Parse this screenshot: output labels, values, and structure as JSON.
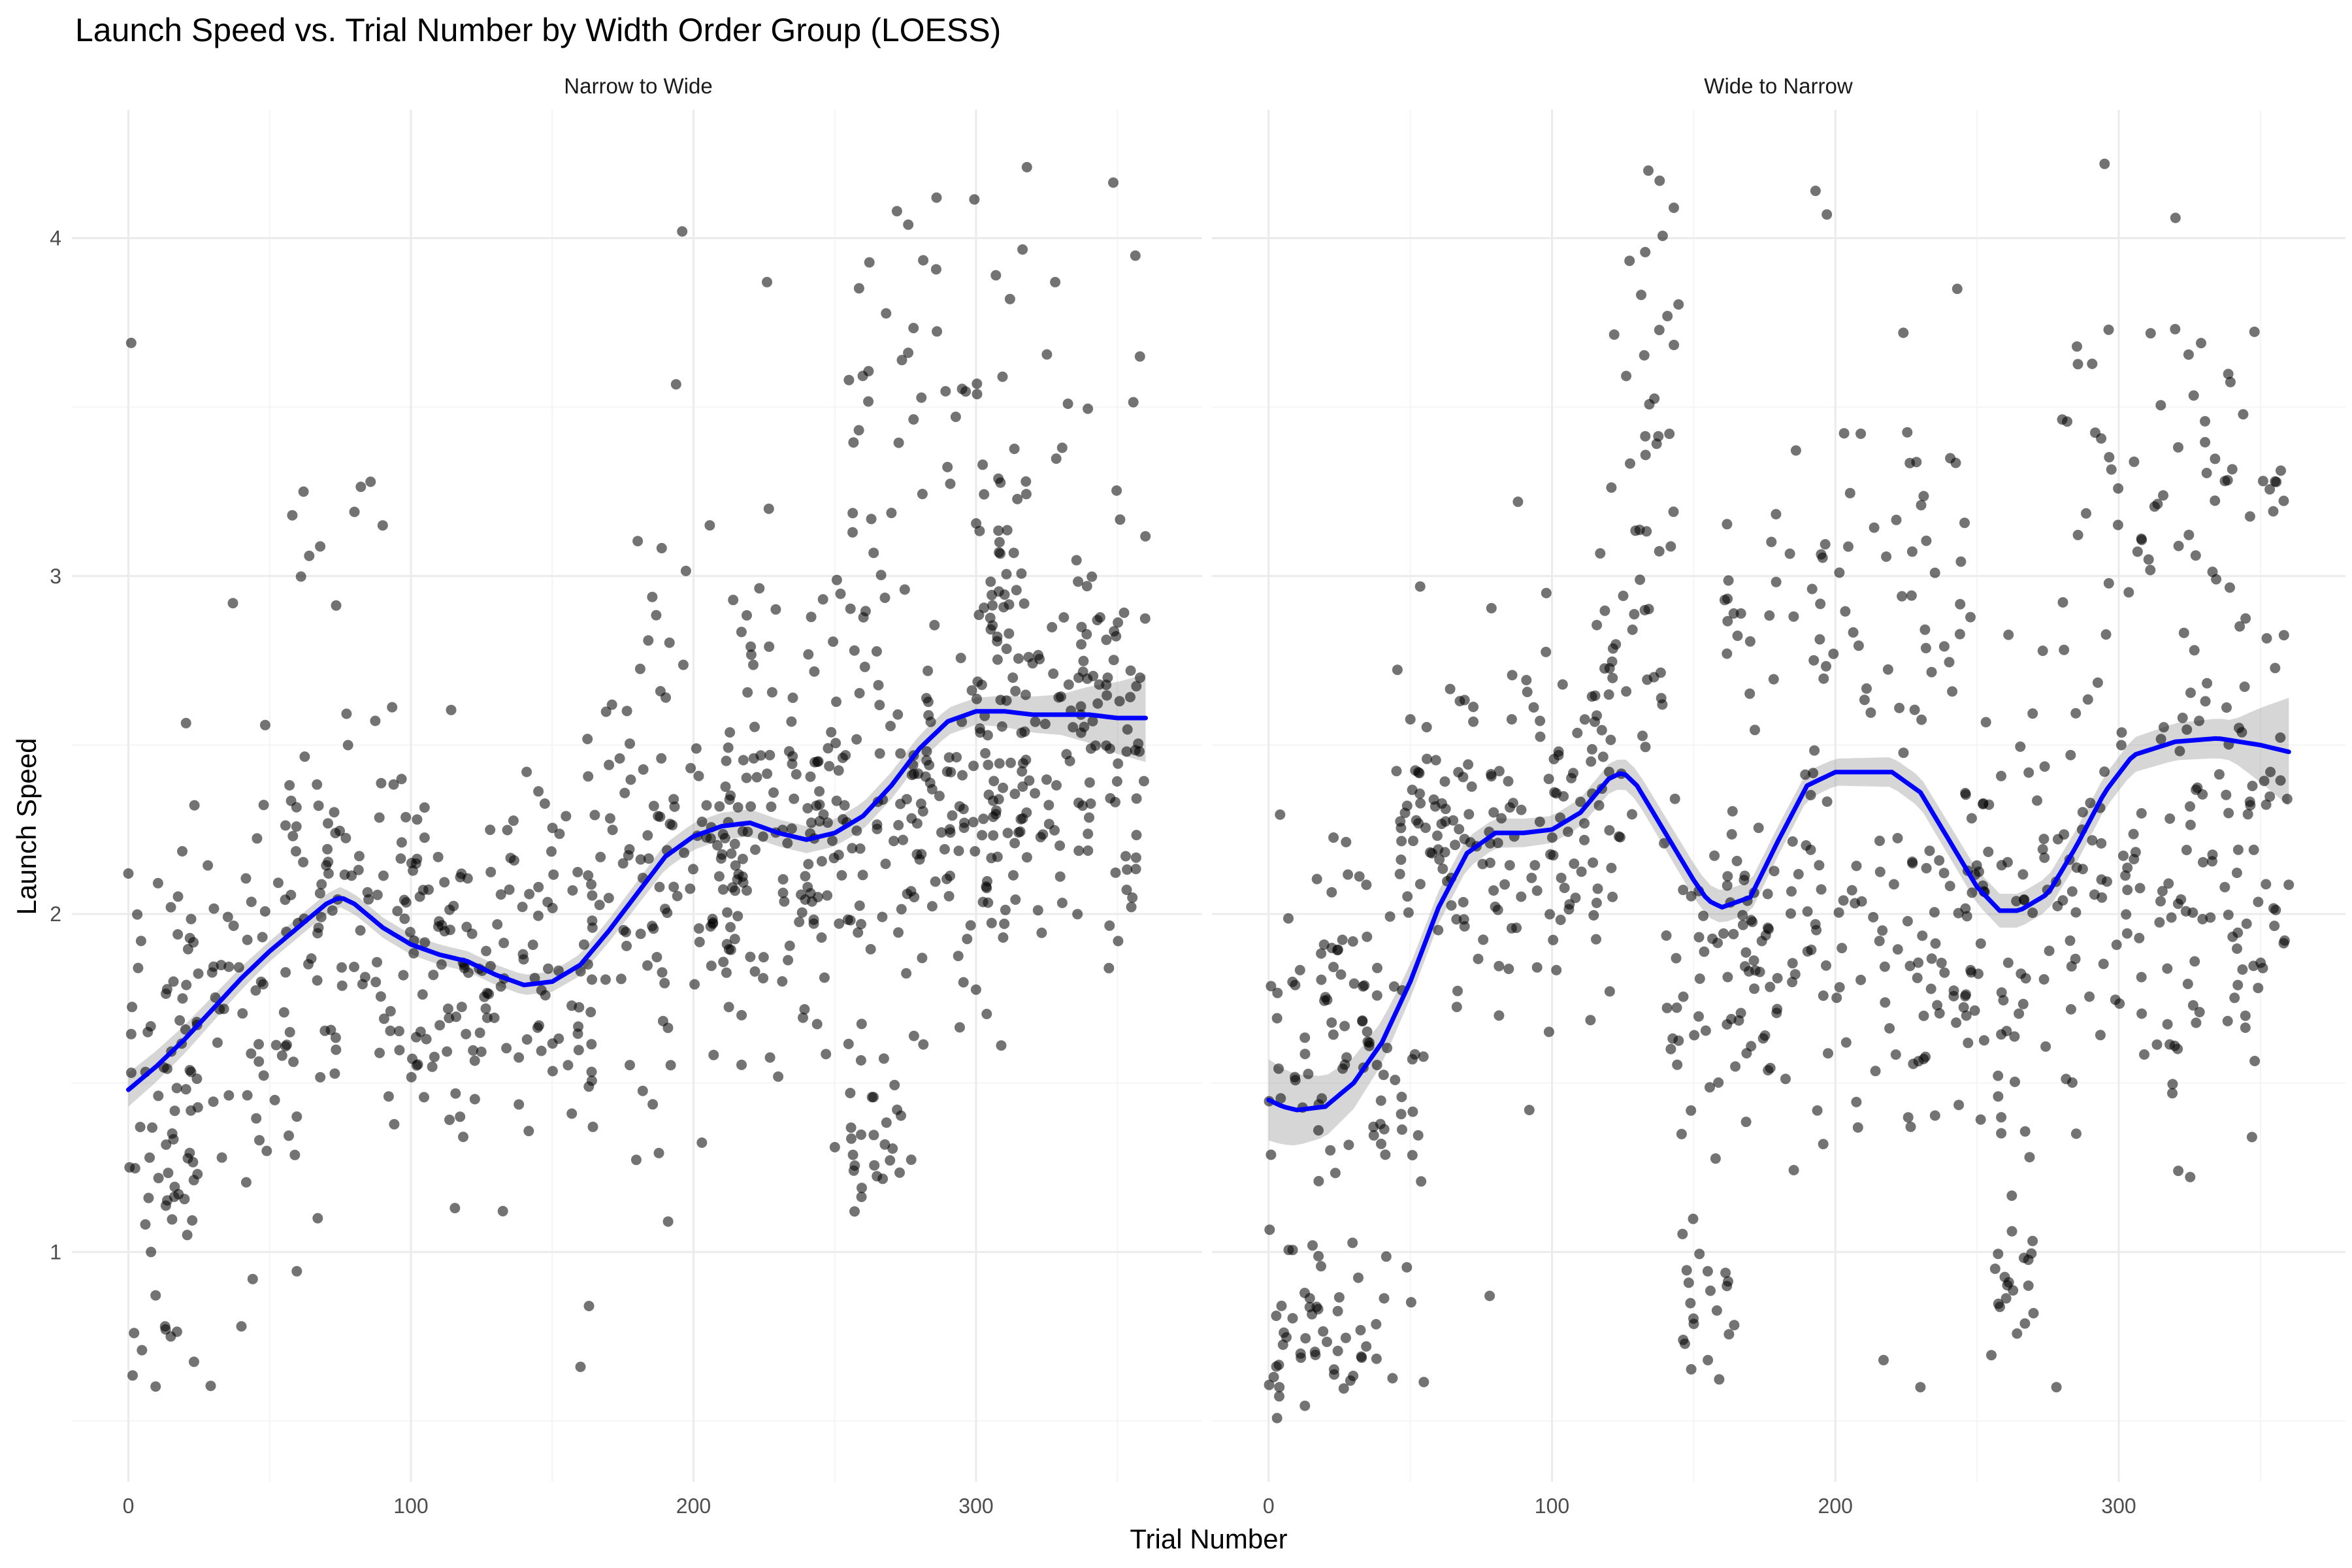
{
  "chart_data": {
    "type": "scatter",
    "title": "Launch Speed vs. Trial Number by Width Order Group (LOESS)",
    "xlabel": "Trial Number",
    "ylabel": "Launch Speed",
    "xlim": [
      -20,
      380
    ],
    "ylim": [
      0.32,
      4.38
    ],
    "x_ticks": [
      0,
      100,
      200,
      300
    ],
    "y_ticks": [
      1,
      2,
      3,
      4
    ],
    "grid": true,
    "smoother": "LOESS with confidence band",
    "colors": {
      "points": "#000000",
      "fit_line": "#0000ff",
      "band": "#999999"
    },
    "panels": [
      {
        "name": "Narrow to Wide",
        "loess": [
          [
            0,
            1.48
          ],
          [
            10,
            1.55
          ],
          [
            20,
            1.63
          ],
          [
            30,
            1.72
          ],
          [
            40,
            1.81
          ],
          [
            50,
            1.89
          ],
          [
            60,
            1.96
          ],
          [
            70,
            2.03
          ],
          [
            75,
            2.05
          ],
          [
            80,
            2.03
          ],
          [
            90,
            1.96
          ],
          [
            100,
            1.91
          ],
          [
            110,
            1.88
          ],
          [
            120,
            1.86
          ],
          [
            130,
            1.82
          ],
          [
            140,
            1.79
          ],
          [
            150,
            1.8
          ],
          [
            160,
            1.85
          ],
          [
            170,
            1.95
          ],
          [
            180,
            2.06
          ],
          [
            190,
            2.17
          ],
          [
            200,
            2.23
          ],
          [
            210,
            2.26
          ],
          [
            220,
            2.27
          ],
          [
            230,
            2.24
          ],
          [
            240,
            2.22
          ],
          [
            250,
            2.24
          ],
          [
            260,
            2.29
          ],
          [
            270,
            2.38
          ],
          [
            280,
            2.49
          ],
          [
            290,
            2.57
          ],
          [
            300,
            2.6
          ],
          [
            310,
            2.6
          ],
          [
            320,
            2.59
          ],
          [
            330,
            2.59
          ],
          [
            340,
            2.59
          ],
          [
            350,
            2.58
          ],
          [
            360,
            2.58
          ]
        ],
        "band_halfwidth": [
          [
            0,
            0.05
          ],
          [
            50,
            0.03
          ],
          [
            100,
            0.03
          ],
          [
            150,
            0.03
          ],
          [
            200,
            0.04
          ],
          [
            250,
            0.04
          ],
          [
            300,
            0.04
          ],
          [
            330,
            0.06
          ],
          [
            360,
            0.13
          ]
        ],
        "clusters": [
          {
            "x": [
              0,
              25
            ],
            "y": [
              1.45,
              0.45
            ],
            "n": 55
          },
          {
            "x": [
              15,
              60
            ],
            "y": [
              1.7,
              0.4
            ],
            "n": 70
          },
          {
            "x": [
              55,
              105
            ],
            "y": [
              2.0,
              0.35
            ],
            "n": 90
          },
          {
            "x": [
              60,
              95
            ],
            "y": [
              2.9,
              0.3
            ],
            "n": 8
          },
          {
            "x": [
              95,
              165
            ],
            "y": [
              1.8,
              0.35
            ],
            "n": 130
          },
          {
            "x": [
              160,
              215
            ],
            "y": [
              2.15,
              0.4
            ],
            "n": 90
          },
          {
            "x": [
              170,
              230
            ],
            "y": [
              2.8,
              0.35
            ],
            "n": 30
          },
          {
            "x": [
              205,
              260
            ],
            "y": [
              2.1,
              0.35
            ],
            "n": 110
          },
          {
            "x": [
              240,
              265
            ],
            "y": [
              2.5,
              0.6
            ],
            "n": 40
          },
          {
            "x": [
              255,
              275
            ],
            "y": [
              1.4,
              0.15
            ],
            "n": 25
          },
          {
            "x": [
              255,
              300
            ],
            "y": [
              3.6,
              0.35
            ],
            "n": 30
          },
          {
            "x": [
              265,
              310
            ],
            "y": [
              2.25,
              0.35
            ],
            "n": 100
          },
          {
            "x": [
              300,
              360
            ],
            "y": [
              2.5,
              0.35
            ],
            "n": 150
          },
          {
            "x": [
              300,
              360
            ],
            "y": [
              3.2,
              0.4
            ],
            "n": 45
          }
        ],
        "points": [
          [
            1,
            3.69
          ],
          [
            0,
            2.12
          ],
          [
            2,
            0.76
          ],
          [
            8,
            1.0
          ],
          [
            13,
            0.78
          ],
          [
            15,
            0.75
          ],
          [
            40,
            0.78
          ],
          [
            44,
            0.92
          ],
          [
            37,
            2.92
          ],
          [
            58,
            3.18
          ],
          [
            62,
            3.25
          ],
          [
            64,
            3.06
          ],
          [
            80,
            3.19
          ],
          [
            90,
            3.15
          ],
          [
            67,
            1.1
          ],
          [
            160,
            0.66
          ],
          [
            163,
            0.84
          ],
          [
            196,
            4.02
          ],
          [
            191,
            1.09
          ],
          [
            226,
            3.87
          ],
          [
            272,
            4.08
          ],
          [
            276,
            4.04
          ],
          [
            286,
            4.12
          ],
          [
            318,
            4.21
          ],
          [
            328,
            3.87
          ],
          [
            312,
            3.82
          ],
          [
            307,
            3.89
          ],
          [
            358,
            3.65
          ],
          [
            250,
            1.31
          ],
          [
            257,
            1.12
          ],
          [
            347,
            1.84
          ]
        ]
      },
      {
        "name": "Wide to Narrow",
        "loess": [
          [
            0,
            1.45
          ],
          [
            5,
            1.43
          ],
          [
            10,
            1.42
          ],
          [
            20,
            1.43
          ],
          [
            30,
            1.5
          ],
          [
            40,
            1.62
          ],
          [
            50,
            1.8
          ],
          [
            60,
            2.02
          ],
          [
            70,
            2.18
          ],
          [
            80,
            2.24
          ],
          [
            90,
            2.24
          ],
          [
            100,
            2.25
          ],
          [
            110,
            2.3
          ],
          [
            120,
            2.4
          ],
          [
            125,
            2.42
          ],
          [
            130,
            2.38
          ],
          [
            140,
            2.24
          ],
          [
            150,
            2.1
          ],
          [
            155,
            2.04
          ],
          [
            160,
            2.02
          ],
          [
            170,
            2.05
          ],
          [
            180,
            2.22
          ],
          [
            190,
            2.38
          ],
          [
            200,
            2.42
          ],
          [
            210,
            2.42
          ],
          [
            220,
            2.42
          ],
          [
            230,
            2.36
          ],
          [
            240,
            2.22
          ],
          [
            250,
            2.08
          ],
          [
            258,
            2.01
          ],
          [
            265,
            2.01
          ],
          [
            275,
            2.06
          ],
          [
            285,
            2.2
          ],
          [
            295,
            2.36
          ],
          [
            305,
            2.47
          ],
          [
            320,
            2.51
          ],
          [
            335,
            2.52
          ],
          [
            350,
            2.5
          ],
          [
            360,
            2.48
          ]
        ],
        "band_halfwidth": [
          [
            0,
            0.12
          ],
          [
            20,
            0.09
          ],
          [
            50,
            0.05
          ],
          [
            100,
            0.04
          ],
          [
            150,
            0.05
          ],
          [
            200,
            0.04
          ],
          [
            250,
            0.05
          ],
          [
            300,
            0.05
          ],
          [
            340,
            0.06
          ],
          [
            360,
            0.16
          ]
        ],
        "clusters": [
          {
            "x": [
              0,
              45
            ],
            "y": [
              1.7,
              0.3
            ],
            "n": 70
          },
          {
            "x": [
              0,
              40
            ],
            "y": [
              0.75,
              0.2
            ],
            "n": 55
          },
          {
            "x": [
              35,
              55
            ],
            "y": [
              1.3,
              0.35
            ],
            "n": 25
          },
          {
            "x": [
              45,
              125
            ],
            "y": [
              2.25,
              0.3
            ],
            "n": 160
          },
          {
            "x": [
              115,
              145
            ],
            "y": [
              2.8,
              0.45
            ],
            "n": 45
          },
          {
            "x": [
              120,
              145
            ],
            "y": [
              3.75,
              0.3
            ],
            "n": 14
          },
          {
            "x": [
              140,
              180
            ],
            "y": [
              1.8,
              0.3
            ],
            "n": 55
          },
          {
            "x": [
              145,
              165
            ],
            "y": [
              0.85,
              0.15
            ],
            "n": 20
          },
          {
            "x": [
              160,
              245
            ],
            "y": [
              2.95,
              0.25
            ],
            "n": 70
          },
          {
            "x": [
              160,
              250
            ],
            "y": [
              1.95,
              0.3
            ],
            "n": 120
          },
          {
            "x": [
              245,
              285
            ],
            "y": [
              2.1,
              0.55
            ],
            "n": 70
          },
          {
            "x": [
              255,
              270
            ],
            "y": [
              0.9,
              0.12
            ],
            "n": 20
          },
          {
            "x": [
              280,
              360
            ],
            "y": [
              2.1,
              0.35
            ],
            "n": 130
          },
          {
            "x": [
              280,
              360
            ],
            "y": [
              3.2,
              0.35
            ],
            "n": 70
          }
        ],
        "points": [
          [
            88,
            3.22
          ],
          [
            78,
            0.87
          ],
          [
            92,
            1.42
          ],
          [
            98,
            2.95
          ],
          [
            134,
            4.2
          ],
          [
            138,
            4.17
          ],
          [
            143,
            4.09
          ],
          [
            193,
            4.14
          ],
          [
            197,
            4.07
          ],
          [
            217,
            0.68
          ],
          [
            224,
            3.72
          ],
          [
            243,
            3.85
          ],
          [
            278,
            0.6
          ],
          [
            285,
            1.35
          ],
          [
            295,
            4.22
          ],
          [
            320,
            4.06
          ],
          [
            342,
            1.79
          ],
          [
            347,
            1.34
          ],
          [
            321,
            1.24
          ],
          [
            230,
            0.6
          ],
          [
            155,
            0.68
          ]
        ]
      }
    ]
  }
}
